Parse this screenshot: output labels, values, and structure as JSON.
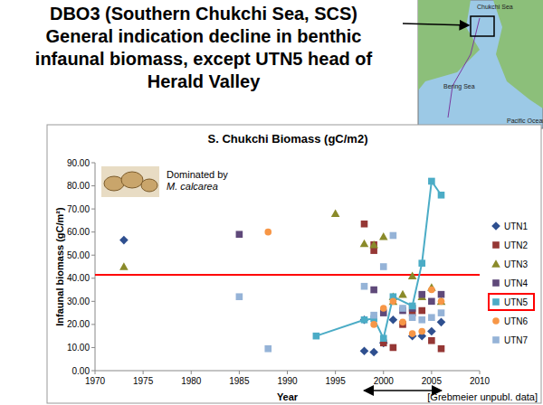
{
  "heading": [
    "DBO3 (Southern Chukchi Sea, SCS)",
    "General indication decline in benthic",
    "infaunal biomass, except UTN5 head of",
    "Herald Valley"
  ],
  "map_labels": [
    "Chukchi Sea",
    "Bering Sea",
    "Pacific Ocean"
  ],
  "chart_data": {
    "type": "scatter",
    "title": "S. Chukchi Biomass (gC/m2)",
    "x_label": "Year",
    "y_label": "Infaunal biomass (gC/m²)",
    "inset_text": [
      "Dominated by",
      "M. calcarea"
    ],
    "source": "[Grebmeier unpubl. data]",
    "xlim": [
      1970,
      2010
    ],
    "xticks": [
      1970,
      1975,
      1980,
      1985,
      1990,
      1995,
      2000,
      2005,
      2010
    ],
    "ylim": [
      0,
      90
    ],
    "yticks": [
      {
        "value": 0,
        "label": "0.00"
      },
      {
        "value": 10,
        "label": "10.00"
      },
      {
        "value": 20,
        "label": "20.00"
      },
      {
        "value": 30,
        "label": "30.00"
      },
      {
        "value": 40,
        "label": "40.00"
      },
      {
        "value": 50,
        "label": "50.00"
      },
      {
        "value": 60,
        "label": "60.00"
      },
      {
        "value": 70,
        "label": "70.00"
      },
      {
        "value": 80,
        "label": "80.00"
      },
      {
        "value": 90,
        "label": "90.00"
      }
    ],
    "grid": false,
    "legend": "right",
    "hlines": [
      {
        "value": 41.5,
        "color": "#ff0000"
      }
    ],
    "x_span": [
      1998,
      2006
    ],
    "series": [
      {
        "name": "UTN1",
        "color": "#2e4f8f",
        "marker": "diamond",
        "line_style": "none",
        "x": [
          1973,
          1998,
          1998,
          1999,
          2000,
          2001,
          2003,
          2004,
          2005,
          2006
        ],
        "values": [
          56.5,
          8.5,
          22,
          8,
          12,
          22,
          15,
          15,
          17,
          21
        ]
      },
      {
        "name": "UTN2",
        "color": "#953735",
        "marker": "square",
        "line_style": "none",
        "x": [
          1998,
          1999,
          1999,
          2000,
          2001,
          2002,
          2003,
          2004,
          2005,
          2006
        ],
        "values": [
          63.5,
          52,
          54.5,
          12,
          10,
          20,
          25,
          26,
          13,
          9.5
        ]
      },
      {
        "name": "UTN3",
        "color": "#8a8a2a",
        "marker": "triangle",
        "line_style": "none",
        "x": [
          1973,
          1995,
          1998,
          1999,
          2000,
          2001,
          2001,
          2002,
          2003,
          2004,
          2005,
          2006
        ],
        "values": [
          45,
          68,
          55,
          54.5,
          58,
          32,
          30,
          33,
          41,
          32,
          36,
          30
        ]
      },
      {
        "name": "UTN4",
        "color": "#5f497a",
        "marker": "square",
        "line_style": "none",
        "x": [
          1985,
          1999,
          2000,
          2002,
          2003,
          2004,
          2005,
          2006
        ],
        "values": [
          59,
          35,
          25,
          26,
          27,
          33,
          30,
          33
        ]
      },
      {
        "name": "UTN5",
        "color": "#4bacc6",
        "marker": "square",
        "line_style": "solid",
        "x": [
          1993,
          1998,
          1999,
          2000,
          2001,
          2003,
          2004,
          2005,
          2006
        ],
        "values": [
          15,
          22,
          22.5,
          14,
          32,
          28,
          46.5,
          82,
          76
        ]
      },
      {
        "name": "UTN6",
        "color": "#f79646",
        "marker": "circle",
        "line_style": "none",
        "x": [
          1988,
          1999,
          2000,
          2001,
          2002,
          2003,
          2004,
          2005,
          2006
        ],
        "values": [
          60,
          20,
          27,
          30,
          21,
          16,
          17,
          35,
          30
        ]
      },
      {
        "name": "UTN7",
        "color": "#95b3d7",
        "marker": "square",
        "line_style": "none",
        "x": [
          1985,
          1988,
          1998,
          1999,
          2000,
          2001,
          2002,
          2003,
          2004,
          2005,
          2006
        ],
        "values": [
          32,
          9.5,
          36.5,
          24,
          45,
          58.5,
          27,
          23,
          22,
          23,
          25
        ]
      }
    ]
  }
}
